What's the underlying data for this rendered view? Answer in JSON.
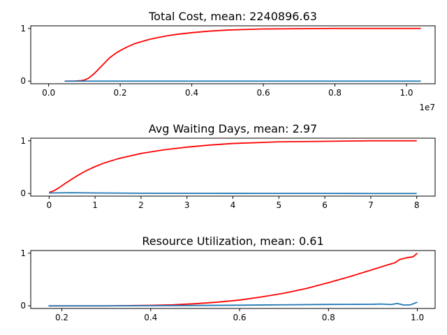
{
  "chart_data": [
    {
      "type": "line",
      "title": "Total Cost, mean: 2240896.63",
      "xlabel": "",
      "ylabel": "",
      "x_scale_label": "1e7",
      "xlim": [
        -0.05,
        1.08
      ],
      "ylim": [
        -0.05,
        1.05
      ],
      "xticks": [
        0.0,
        0.2,
        0.4,
        0.6,
        0.8,
        1.0
      ],
      "xtick_labels": [
        "0.0",
        "0.2",
        "0.4",
        "0.6",
        "0.8",
        "1.0"
      ],
      "yticks": [
        0,
        1
      ],
      "ytick_labels": [
        "0",
        "1"
      ],
      "grid": false,
      "series": [
        {
          "color": "#ff0000",
          "x": [
            0.045,
            0.07,
            0.09,
            0.1,
            0.11,
            0.12,
            0.13,
            0.14,
            0.15,
            0.16,
            0.17,
            0.18,
            0.19,
            0.2,
            0.22,
            0.24,
            0.26,
            0.28,
            0.3,
            0.33,
            0.36,
            0.4,
            0.45,
            0.5,
            0.55,
            0.6,
            0.7,
            0.8,
            0.9,
            1.0,
            1.04
          ],
          "y": [
            0.0,
            0.0,
            0.01,
            0.02,
            0.05,
            0.1,
            0.16,
            0.23,
            0.3,
            0.37,
            0.44,
            0.49,
            0.54,
            0.58,
            0.65,
            0.71,
            0.75,
            0.79,
            0.82,
            0.86,
            0.89,
            0.92,
            0.95,
            0.97,
            0.98,
            0.99,
            0.995,
            1.0,
            1.0,
            1.0,
            1.0
          ]
        },
        {
          "color": "#1f77b4",
          "x": [
            0.045,
            0.2,
            0.4,
            0.6,
            0.8,
            1.0,
            1.04
          ],
          "y": [
            0.0,
            0.0,
            0.0,
            0.0,
            0.0,
            0.0,
            0.0
          ]
        }
      ]
    },
    {
      "type": "line",
      "title": "Avg Waiting Days, mean: 2.97",
      "xlabel": "",
      "ylabel": "",
      "xlim": [
        -0.4,
        8.4
      ],
      "ylim": [
        -0.05,
        1.05
      ],
      "xticks": [
        0,
        1,
        2,
        3,
        4,
        5,
        6,
        7,
        8
      ],
      "xtick_labels": [
        "0",
        "1",
        "2",
        "3",
        "4",
        "5",
        "6",
        "7",
        "8"
      ],
      "yticks": [
        0,
        1
      ],
      "ytick_labels": [
        "0",
        "1"
      ],
      "grid": false,
      "series": [
        {
          "color": "#ff0000",
          "x": [
            0,
            0.1,
            0.2,
            0.4,
            0.6,
            0.8,
            1.0,
            1.2,
            1.5,
            2.0,
            2.5,
            3.0,
            3.5,
            4.0,
            5.0,
            6.0,
            7.0,
            8.0
          ],
          "y": [
            0.02,
            0.05,
            0.1,
            0.22,
            0.33,
            0.43,
            0.51,
            0.58,
            0.66,
            0.76,
            0.83,
            0.88,
            0.92,
            0.95,
            0.98,
            0.99,
            1.0,
            1.0
          ]
        },
        {
          "color": "#1f77b4",
          "x": [
            0,
            0.5,
            1.0,
            2.0,
            3.0,
            4.0,
            5.0,
            6.0,
            7.0,
            8.0
          ],
          "y": [
            0.01,
            0.015,
            0.01,
            0.005,
            0.003,
            0.002,
            0.001,
            0.001,
            0.0,
            0.0
          ]
        }
      ]
    },
    {
      "type": "line",
      "title": "Resource Utilization, mean: 0.61",
      "xlabel": "",
      "ylabel": "",
      "xlim": [
        0.13,
        1.04
      ],
      "ylim": [
        -0.05,
        1.05
      ],
      "xticks": [
        0.2,
        0.4,
        0.6,
        0.8,
        1.0
      ],
      "xtick_labels": [
        "0.2",
        "0.4",
        "0.6",
        "0.8",
        "1.0"
      ],
      "yticks": [
        0,
        1
      ],
      "ytick_labels": [
        "0",
        "1"
      ],
      "grid": false,
      "series": [
        {
          "color": "#ff0000",
          "x": [
            0.17,
            0.25,
            0.3,
            0.35,
            0.4,
            0.45,
            0.5,
            0.55,
            0.6,
            0.65,
            0.7,
            0.75,
            0.8,
            0.85,
            0.9,
            0.93,
            0.95,
            0.96,
            0.98,
            0.99,
            1.0
          ],
          "y": [
            0.0,
            0.0,
            0.0,
            0.005,
            0.01,
            0.02,
            0.04,
            0.07,
            0.11,
            0.17,
            0.24,
            0.33,
            0.44,
            0.56,
            0.69,
            0.77,
            0.82,
            0.88,
            0.92,
            0.93,
            1.0
          ]
        },
        {
          "color": "#1f77b4",
          "x": [
            0.17,
            0.3,
            0.4,
            0.5,
            0.6,
            0.7,
            0.8,
            0.85,
            0.9,
            0.92,
            0.94,
            0.955,
            0.97,
            0.985,
            1.0
          ],
          "y": [
            0.0,
            0.0,
            0.003,
            0.007,
            0.012,
            0.02,
            0.027,
            0.028,
            0.03,
            0.035,
            0.025,
            0.045,
            0.015,
            0.02,
            0.07
          ]
        }
      ]
    }
  ]
}
